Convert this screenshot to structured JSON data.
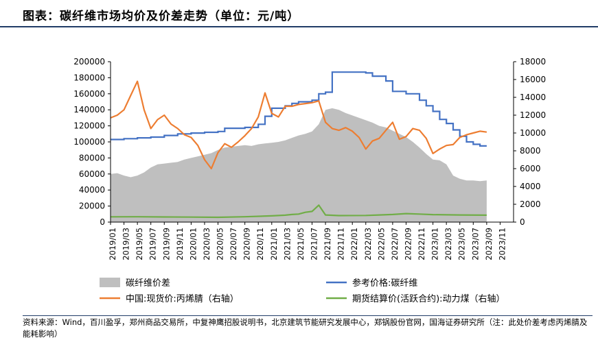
{
  "header": {
    "title": "图表：碳纤维市场均价及价差走势（单位：元/吨）"
  },
  "footer": {
    "source": "资料来源：Wind，百川盈孚，郑州商品交易所，中复神鹰招股说明书，北京建筑节能研究发展中心，郑锅股份官网，国海证券研究所（注：此处价差考虑丙烯腈及能耗影响）"
  },
  "colors": {
    "spread": "#bfbfbf",
    "reference": "#4472c4",
    "acrylonitrile": "#ed7d31",
    "coal": "#70ad47"
  },
  "chart_data": {
    "type": "area",
    "title": "",
    "xlabel": "",
    "ylabel": "",
    "x_range": [
      "2019-01",
      "2023-12"
    ],
    "ylim_left": [
      0,
      200000
    ],
    "ylim_right": [
      0,
      18000
    ],
    "left_ticks": [
      "0",
      "20000",
      "40000",
      "60000",
      "80000",
      "100000",
      "120000",
      "140000",
      "160000",
      "180000",
      "200000"
    ],
    "right_ticks": [
      "0",
      "2000",
      "4000",
      "6000",
      "8000",
      "10000",
      "12000",
      "14000",
      "16000",
      "18000"
    ],
    "x_ticks": [
      "2019/01",
      "2019/03",
      "2019/05",
      "2019/07",
      "2019/09",
      "2019/11",
      "2020/01",
      "2020/03",
      "2020/05",
      "2020/07",
      "2020/09",
      "2020/11",
      "2021/01",
      "2021/03",
      "2021/05",
      "2021/07",
      "2021/09",
      "2021/11",
      "2022/01",
      "2022/03",
      "2022/05",
      "2022/07",
      "2022/09",
      "2022/11",
      "2023/01",
      "2023/03",
      "2023/05",
      "2023/07",
      "2023/09",
      "2023/11"
    ],
    "grid": false,
    "legend_position": "bottom",
    "series": [
      {
        "name": "碳纤维价差",
        "type": "area",
        "axis": "left",
        "points": [
          [
            0,
            60000
          ],
          [
            1,
            61000
          ],
          [
            2,
            58000
          ],
          [
            3,
            56000
          ],
          [
            4,
            58000
          ],
          [
            5,
            62000
          ],
          [
            6,
            68000
          ],
          [
            7,
            72000
          ],
          [
            8,
            73000
          ],
          [
            9,
            74000
          ],
          [
            10,
            75000
          ],
          [
            11,
            78000
          ],
          [
            12,
            80000
          ],
          [
            13,
            82000
          ],
          [
            14,
            84000
          ],
          [
            15,
            86000
          ],
          [
            16,
            90000
          ],
          [
            17,
            93000
          ],
          [
            18,
            94000
          ],
          [
            19,
            95000
          ],
          [
            20,
            96000
          ],
          [
            21,
            95000
          ],
          [
            22,
            97000
          ],
          [
            23,
            98000
          ],
          [
            24,
            99000
          ],
          [
            25,
            100000
          ],
          [
            26,
            102000
          ],
          [
            27,
            105000
          ],
          [
            28,
            108000
          ],
          [
            29,
            110000
          ],
          [
            30,
            113000
          ],
          [
            31,
            122000
          ],
          [
            32,
            140000
          ],
          [
            33,
            142000
          ],
          [
            34,
            140000
          ],
          [
            35,
            136000
          ],
          [
            36,
            133000
          ],
          [
            37,
            130000
          ],
          [
            38,
            127000
          ],
          [
            39,
            124000
          ],
          [
            40,
            120000
          ],
          [
            41,
            118000
          ],
          [
            42,
            114000
          ],
          [
            43,
            110000
          ],
          [
            44,
            106000
          ],
          [
            45,
            100000
          ],
          [
            46,
            93000
          ],
          [
            47,
            85000
          ],
          [
            48,
            78000
          ],
          [
            49,
            77000
          ],
          [
            50,
            72000
          ],
          [
            51,
            58000
          ],
          [
            52,
            54000
          ],
          [
            53,
            52000
          ],
          [
            54,
            52000
          ],
          [
            55,
            51000
          ],
          [
            56,
            52000
          ]
        ]
      },
      {
        "name": "参考价格:碳纤维",
        "type": "step",
        "axis": "left",
        "points": [
          [
            0,
            103000
          ],
          [
            1,
            103000
          ],
          [
            2,
            104000
          ],
          [
            4,
            105000
          ],
          [
            6,
            106000
          ],
          [
            8,
            108000
          ],
          [
            10,
            110000
          ],
          [
            12,
            111000
          ],
          [
            14,
            112000
          ],
          [
            16,
            113000
          ],
          [
            17,
            117000
          ],
          [
            18,
            117000
          ],
          [
            19,
            117000
          ],
          [
            20,
            118000
          ],
          [
            22,
            122000
          ],
          [
            23,
            132000
          ],
          [
            24,
            142000
          ],
          [
            26,
            145000
          ],
          [
            27,
            148000
          ],
          [
            28,
            150000
          ],
          [
            30,
            152000
          ],
          [
            31,
            160000
          ],
          [
            32,
            162000
          ],
          [
            33,
            187000
          ],
          [
            38,
            186000
          ],
          [
            39,
            182000
          ],
          [
            41,
            176000
          ],
          [
            42,
            163000
          ],
          [
            44,
            160000
          ],
          [
            46,
            152000
          ],
          [
            47,
            145000
          ],
          [
            48,
            138000
          ],
          [
            49,
            128000
          ],
          [
            50,
            123000
          ],
          [
            51,
            115000
          ],
          [
            52,
            107000
          ],
          [
            53,
            100000
          ],
          [
            54,
            97000
          ],
          [
            55,
            95000
          ],
          [
            56,
            95000
          ]
        ]
      },
      {
        "name": "中国:现货价:丙烯腈（右轴）",
        "type": "line",
        "axis": "right",
        "points": [
          [
            0,
            11700
          ],
          [
            1,
            12000
          ],
          [
            2,
            12600
          ],
          [
            3,
            14200
          ],
          [
            4,
            15800
          ],
          [
            5,
            12600
          ],
          [
            6,
            10500
          ],
          [
            7,
            11500
          ],
          [
            8,
            12000
          ],
          [
            9,
            11000
          ],
          [
            10,
            10500
          ],
          [
            11,
            9800
          ],
          [
            12,
            9500
          ],
          [
            13,
            8600
          ],
          [
            14,
            7000
          ],
          [
            15,
            6000
          ],
          [
            16,
            7800
          ],
          [
            17,
            8800
          ],
          [
            18,
            8400
          ],
          [
            19,
            9000
          ],
          [
            20,
            9700
          ],
          [
            21,
            10500
          ],
          [
            22,
            11800
          ],
          [
            23,
            14500
          ],
          [
            24,
            12200
          ],
          [
            25,
            11800
          ],
          [
            26,
            13000
          ],
          [
            27,
            13000
          ],
          [
            28,
            13200
          ],
          [
            29,
            13300
          ],
          [
            30,
            13400
          ],
          [
            31,
            13600
          ],
          [
            32,
            11200
          ],
          [
            33,
            10500
          ],
          [
            34,
            10300
          ],
          [
            35,
            10600
          ],
          [
            36,
            10200
          ],
          [
            37,
            9500
          ],
          [
            38,
            8200
          ],
          [
            39,
            9100
          ],
          [
            40,
            9400
          ],
          [
            41,
            10300
          ],
          [
            42,
            11200
          ],
          [
            43,
            9300
          ],
          [
            44,
            9600
          ],
          [
            45,
            10500
          ],
          [
            46,
            10300
          ],
          [
            47,
            9400
          ],
          [
            48,
            7700
          ],
          [
            49,
            8200
          ],
          [
            50,
            8600
          ],
          [
            51,
            8700
          ],
          [
            52,
            9500
          ],
          [
            53,
            9800
          ],
          [
            54,
            10000
          ],
          [
            55,
            10200
          ],
          [
            56,
            10100
          ]
        ]
      },
      {
        "name": "期货结算价(活跃合约):动力煤（右轴）",
        "type": "line",
        "axis": "right",
        "points": [
          [
            0,
            590
          ],
          [
            4,
            600
          ],
          [
            8,
            580
          ],
          [
            12,
            560
          ],
          [
            16,
            540
          ],
          [
            20,
            600
          ],
          [
            24,
            700
          ],
          [
            26,
            780
          ],
          [
            27,
            850
          ],
          [
            28,
            900
          ],
          [
            29,
            1100
          ],
          [
            30,
            1200
          ],
          [
            31,
            1900
          ],
          [
            32,
            800
          ],
          [
            34,
            730
          ],
          [
            38,
            750
          ],
          [
            40,
            800
          ],
          [
            42,
            850
          ],
          [
            44,
            950
          ],
          [
            46,
            900
          ],
          [
            48,
            840
          ],
          [
            52,
            800
          ],
          [
            56,
            780
          ]
        ]
      }
    ]
  },
  "legend": [
    {
      "label": "碳纤维价差",
      "type": "area",
      "color": "#bfbfbf"
    },
    {
      "label": "参考价格:碳纤维",
      "type": "line",
      "color": "#4472c4"
    },
    {
      "label": "中国:现货价:丙烯腈（右轴）",
      "type": "line",
      "color": "#ed7d31"
    },
    {
      "label": "期货结算价(活跃合约):动力煤（右轴）",
      "type": "line",
      "color": "#70ad47"
    }
  ]
}
